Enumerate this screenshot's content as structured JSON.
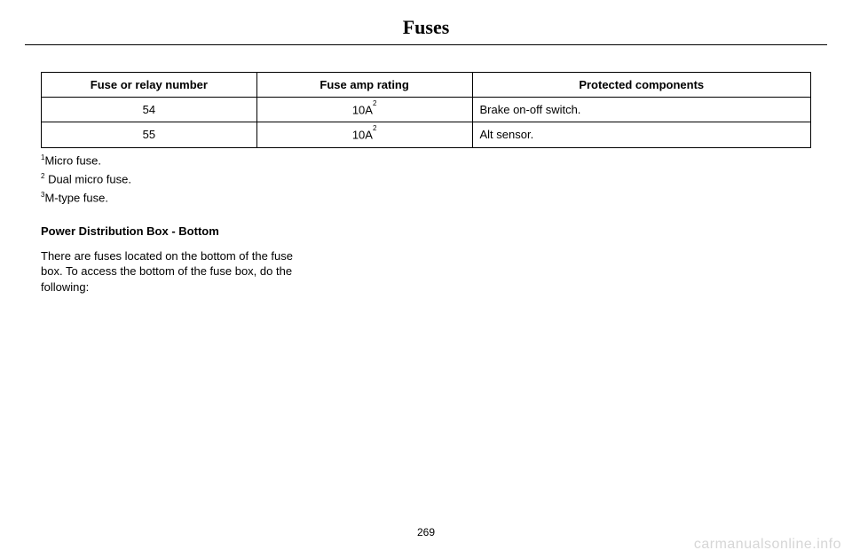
{
  "title": "Fuses",
  "table": {
    "headers": {
      "col1": "Fuse or relay number",
      "col2": "Fuse amp rating",
      "col3": "Protected components"
    },
    "rows": [
      {
        "number": "54",
        "amp": "10A",
        "amp_note": "2",
        "protected": "Brake on-off switch."
      },
      {
        "number": "55",
        "amp": "10A",
        "amp_note": "2",
        "protected": "Alt sensor."
      }
    ]
  },
  "footnotes": [
    {
      "mark": "1",
      "text": "Micro fuse."
    },
    {
      "mark": "2",
      "text": " Dual micro fuse."
    },
    {
      "mark": "3",
      "text": "M-type fuse."
    }
  ],
  "section_heading": "Power Distribution Box - Bottom",
  "body_text": "There are fuses located on the bottom of the fuse box. To access the bottom of the fuse box, do the following:",
  "page_number": "269",
  "watermark": "carmanualsonline.info"
}
